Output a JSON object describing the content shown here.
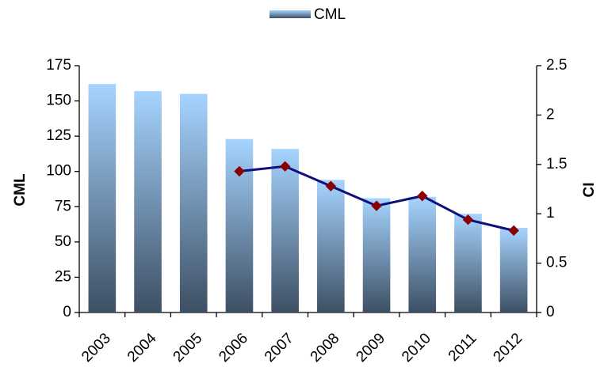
{
  "chart_data": {
    "type": "bar",
    "categories": [
      "2003",
      "2004",
      "2005",
      "2006",
      "2007",
      "2008",
      "2009",
      "2010",
      "2011",
      "2012"
    ],
    "series": [
      {
        "name": "CML",
        "type": "bar",
        "color": "#a6d4ff",
        "values": [
          162,
          157,
          155,
          123,
          116,
          94,
          81,
          82,
          70,
          60
        ]
      },
      {
        "type": "line",
        "axis": "y2",
        "color": "#10107a",
        "marker_color": "#8b0000",
        "values": [
          null,
          null,
          null,
          1.43,
          1.48,
          1.28,
          1.08,
          1.18,
          0.94,
          0.83
        ]
      }
    ],
    "y_label": "CML",
    "y2_label": "CI",
    "ylim": [
      0,
      175
    ],
    "yticks": [
      0,
      25,
      50,
      75,
      100,
      125,
      150,
      175
    ],
    "y2lim": [
      0,
      2.5
    ],
    "y2ticks": [
      0,
      0.5,
      1,
      1.5,
      2,
      2.5
    ],
    "legend": "top"
  }
}
